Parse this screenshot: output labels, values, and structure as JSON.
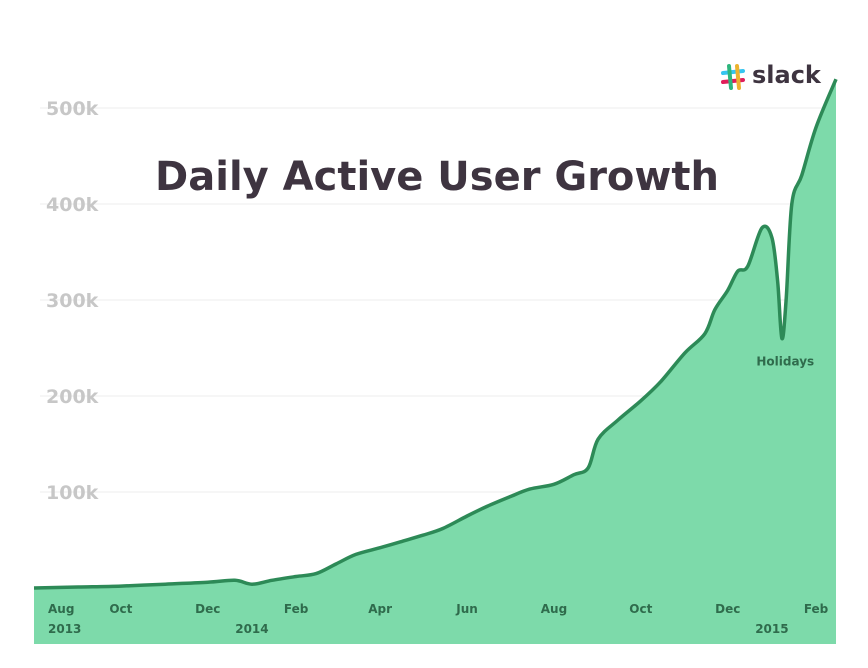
{
  "brand": {
    "logo_text": "slack"
  },
  "colors": {
    "area_fill": "#7ddaaa",
    "line": "#2d8a57",
    "grid": "#eeeeee",
    "title": "#3e3440",
    "ytick": "#c7c7c7",
    "xtick": "#2f6b4c",
    "logo": [
      "#e01e5a",
      "#36c5f0",
      "#2eb67d",
      "#ecb22e"
    ]
  },
  "chart_data": {
    "type": "area",
    "title": "Daily Active User Growth",
    "xlabel": "",
    "ylabel": "",
    "ylim": [
      0,
      520000
    ],
    "grid": true,
    "yticks": [
      {
        "value": 100000,
        "label": "100k"
      },
      {
        "value": 200000,
        "label": "200k"
      },
      {
        "value": 300000,
        "label": "300k"
      },
      {
        "value": 400000,
        "label": "400k"
      },
      {
        "value": 500000,
        "label": "500k"
      }
    ],
    "xticks": [
      {
        "date": "2013-08-01",
        "label": "Aug",
        "year": "2013"
      },
      {
        "date": "2013-10-01",
        "label": "Oct",
        "year": ""
      },
      {
        "date": "2013-12-01",
        "label": "Dec",
        "year": ""
      },
      {
        "date": "2014-02-01",
        "label": "Feb",
        "year": ""
      },
      {
        "date": "2014-04-01",
        "label": "Apr",
        "year": ""
      },
      {
        "date": "2014-06-01",
        "label": "Jun",
        "year": ""
      },
      {
        "date": "2014-08-01",
        "label": "Aug",
        "year": ""
      },
      {
        "date": "2014-10-01",
        "label": "Oct",
        "year": ""
      },
      {
        "date": "2014-12-01",
        "label": "Dec",
        "year": ""
      },
      {
        "date": "2015-02-01",
        "label": "Feb",
        "year": ""
      }
    ],
    "year_labels": [
      {
        "date": "2014-01-01",
        "label": "2014"
      },
      {
        "date": "2015-01-01",
        "label": "2015"
      }
    ],
    "xlim": [
      "2013-08-01",
      "2015-02-15"
    ],
    "series": [
      {
        "points": [
          [
            "2013-08-01",
            0
          ],
          [
            "2013-09-01",
            1000
          ],
          [
            "2013-10-01",
            2000
          ],
          [
            "2013-11-01",
            4000
          ],
          [
            "2013-12-01",
            6000
          ],
          [
            "2013-12-20",
            8000
          ],
          [
            "2014-01-01",
            4000
          ],
          [
            "2014-01-15",
            8000
          ],
          [
            "2014-02-01",
            12000
          ],
          [
            "2014-02-15",
            15000
          ],
          [
            "2014-03-01",
            25000
          ],
          [
            "2014-03-15",
            35000
          ],
          [
            "2014-04-01",
            42000
          ],
          [
            "2014-04-15",
            48000
          ],
          [
            "2014-05-01",
            55000
          ],
          [
            "2014-05-15",
            62000
          ],
          [
            "2014-06-01",
            75000
          ],
          [
            "2014-06-15",
            85000
          ],
          [
            "2014-07-01",
            95000
          ],
          [
            "2014-07-15",
            103000
          ],
          [
            "2014-08-01",
            108000
          ],
          [
            "2014-08-15",
            118000
          ],
          [
            "2014-08-25",
            125000
          ],
          [
            "2014-09-01",
            155000
          ],
          [
            "2014-09-15",
            175000
          ],
          [
            "2014-10-01",
            195000
          ],
          [
            "2014-10-15",
            215000
          ],
          [
            "2014-11-01",
            245000
          ],
          [
            "2014-11-15",
            265000
          ],
          [
            "2014-11-22",
            290000
          ],
          [
            "2014-12-01",
            310000
          ],
          [
            "2014-12-08",
            330000
          ],
          [
            "2014-12-15",
            335000
          ],
          [
            "2014-12-25",
            375000
          ],
          [
            "2015-01-01",
            365000
          ],
          [
            "2015-01-05",
            320000
          ],
          [
            "2015-01-08",
            260000
          ],
          [
            "2015-01-11",
            300000
          ],
          [
            "2015-01-15",
            400000
          ],
          [
            "2015-01-22",
            430000
          ],
          [
            "2015-02-01",
            480000
          ],
          [
            "2015-02-15",
            530000
          ]
        ]
      }
    ],
    "annotations": [
      {
        "date": "2015-01-09",
        "value": 232000,
        "text": "Holidays"
      }
    ]
  }
}
